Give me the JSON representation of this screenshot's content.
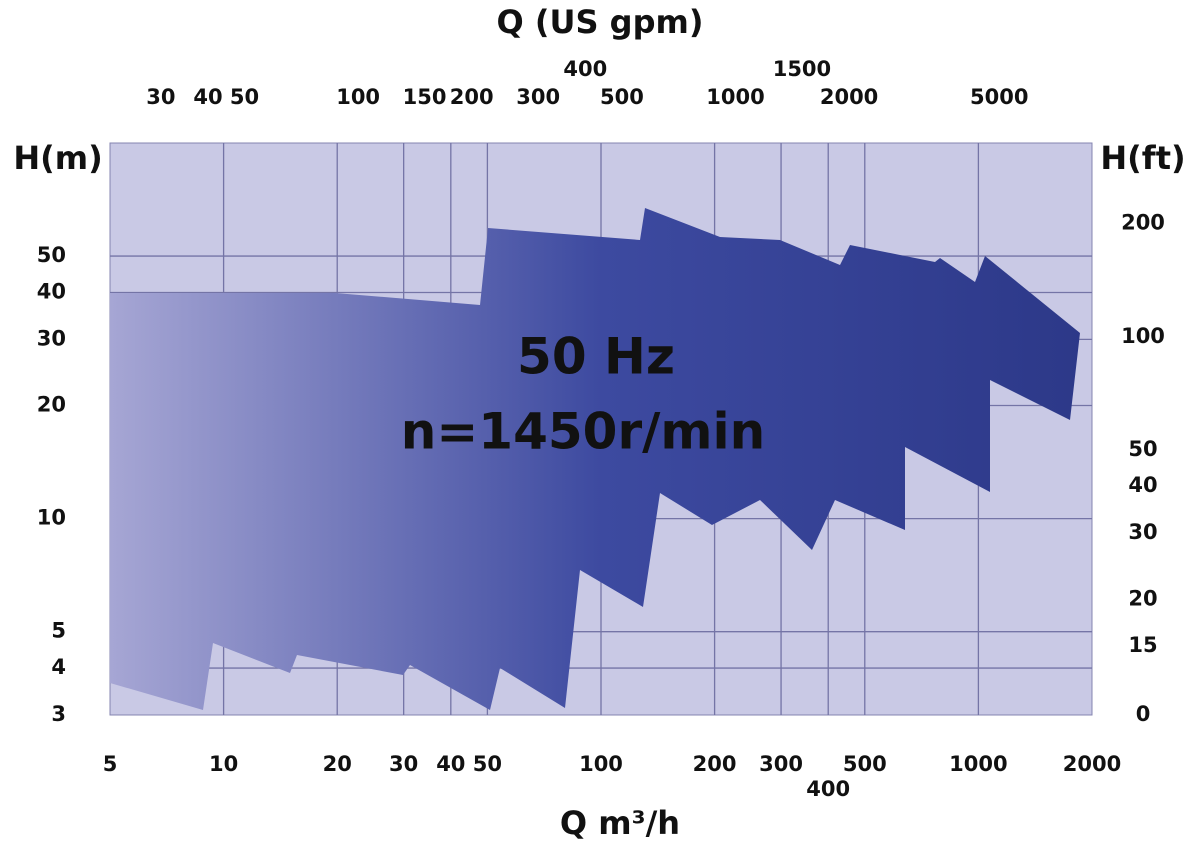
{
  "chart_data": {
    "type": "area",
    "title": "Q (US gpm)",
    "x_label": "Q m³/h",
    "y_label": "H(m)",
    "y2_label": "H(ft)",
    "annotations": [
      "50 Hz",
      "n=1450r/min"
    ],
    "log_x": true,
    "log_y": true,
    "grid": true,
    "xlim": [
      5,
      2000
    ],
    "xticks": [
      5,
      10,
      20,
      30,
      40,
      50,
      100,
      200,
      300,
      400,
      500,
      1000,
      2000
    ],
    "x2lim": [
      22,
      8806
    ],
    "x2ticks": [
      30,
      40,
      50,
      100,
      150,
      200,
      300,
      400,
      500,
      1000,
      1500,
      2000,
      5000
    ],
    "ylim": [
      3,
      100
    ],
    "yticks": [
      3,
      4,
      5,
      10,
      20,
      30,
      40,
      50
    ],
    "y2lim": [
      9.84,
      328
    ],
    "y2ticks": [
      0,
      15,
      20,
      30,
      40,
      50,
      100,
      200
    ]
  }
}
